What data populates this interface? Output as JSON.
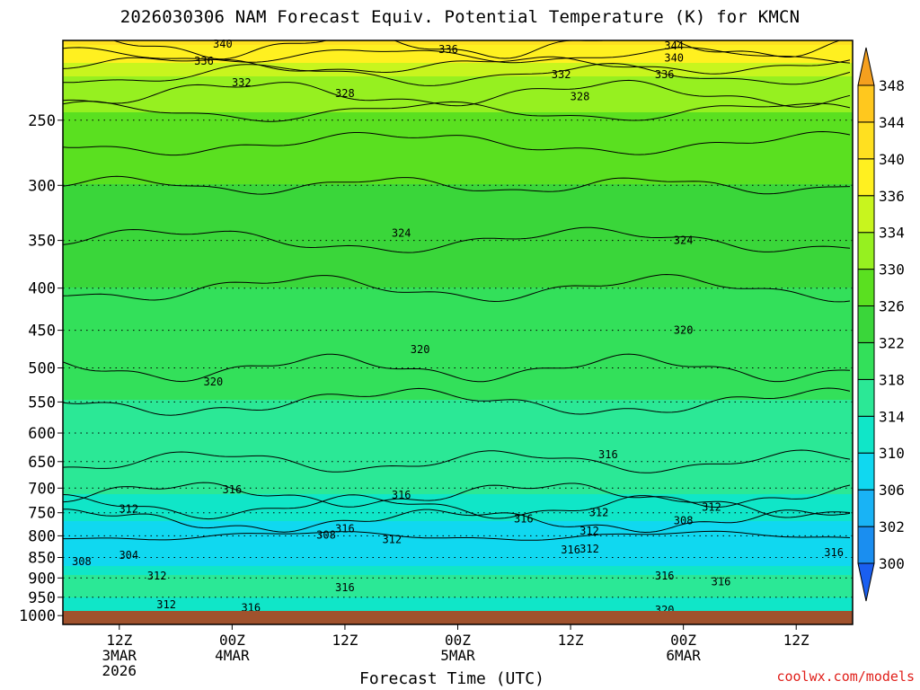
{
  "title": "2026030306 NAM Forecast Equiv. Potential Temperature (K) for KMCN",
  "credit": "coolwx.com/models",
  "chart_data": {
    "type": "heatmap",
    "title": "2026030306 NAM Forecast Equiv. Potential Temperature (K) for KMCN",
    "xlabel": "Forecast Time (UTC)",
    "ylabel": "",
    "y_scale": "log-pressure",
    "y_reversed": true,
    "ylim": [
      1000,
      200
    ],
    "y_ticks": [
      250,
      300,
      350,
      400,
      450,
      500,
      550,
      600,
      650,
      700,
      750,
      800,
      850,
      900,
      950,
      1000
    ],
    "xlim": [
      "2026-03-03T06Z",
      "2026-03-06T18Z"
    ],
    "x_ticks": [
      {
        "time": "2026-03-03T12Z",
        "lines": [
          "12Z",
          "3MAR",
          "2026"
        ]
      },
      {
        "time": "2026-03-04T00Z",
        "lines": [
          "00Z",
          "4MAR"
        ]
      },
      {
        "time": "2026-03-04T12Z",
        "lines": [
          "12Z"
        ]
      },
      {
        "time": "2026-03-05T00Z",
        "lines": [
          "00Z",
          "5MAR"
        ]
      },
      {
        "time": "2026-03-05T12Z",
        "lines": [
          "12Z"
        ]
      },
      {
        "time": "2026-03-06T00Z",
        "lines": [
          "00Z",
          "6MAR"
        ]
      },
      {
        "time": "2026-03-06T12Z",
        "lines": [
          "12Z"
        ]
      }
    ],
    "grid": true,
    "colorbar": {
      "levels": [
        300,
        302,
        306,
        310,
        314,
        318,
        322,
        326,
        330,
        334,
        336,
        340,
        344,
        348
      ],
      "colors": [
        "#1a5ff0",
        "#1a8ef0",
        "#19b3f5",
        "#10d8f0",
        "#10e6c8",
        "#2be896",
        "#33e05a",
        "#3ad63a",
        "#5ae020",
        "#96f020",
        "#c8f51e",
        "#fff020",
        "#ffe020",
        "#ffc81e",
        "#f5a01e"
      ],
      "tick_labels": [
        "300",
        "302",
        "306",
        "310",
        "314",
        "318",
        "322",
        "326",
        "330",
        "334",
        "336",
        "340",
        "344",
        "348"
      ]
    },
    "profile_by_pressure": [
      {
        "p": 1000,
        "thetae": 313
      },
      {
        "p": 950,
        "thetae": 314
      },
      {
        "p": 900,
        "thetae": 315
      },
      {
        "p": 850,
        "thetae": 307
      },
      {
        "p": 800,
        "thetae": 308
      },
      {
        "p": 750,
        "thetae": 311
      },
      {
        "p": 700,
        "thetae": 315
      },
      {
        "p": 650,
        "thetae": 316
      },
      {
        "p": 600,
        "thetae": 317
      },
      {
        "p": 550,
        "thetae": 318
      },
      {
        "p": 500,
        "thetae": 320
      },
      {
        "p": 450,
        "thetae": 321
      },
      {
        "p": 400,
        "thetae": 322
      },
      {
        "p": 350,
        "thetae": 324
      },
      {
        "p": 300,
        "thetae": 326
      },
      {
        "p": 250,
        "thetae": 329
      },
      {
        "p": 220,
        "thetae": 334
      },
      {
        "p": 200,
        "thetae": 341
      }
    ],
    "contour_labels": [
      {
        "text": "340",
        "time": "2026-03-03T23Z",
        "p": 202
      },
      {
        "text": "336",
        "time": "2026-03-03T21Z",
        "p": 212
      },
      {
        "text": "332",
        "time": "2026-03-04T01Z",
        "p": 225
      },
      {
        "text": "328",
        "time": "2026-03-04T12Z",
        "p": 232
      },
      {
        "text": "336",
        "time": "2026-03-04T23Z",
        "p": 205
      },
      {
        "text": "332",
        "time": "2026-03-05T11Z",
        "p": 220
      },
      {
        "text": "328",
        "time": "2026-03-05T13Z",
        "p": 234
      },
      {
        "text": "344",
        "time": "2026-03-05T23Z",
        "p": 203
      },
      {
        "text": "340",
        "time": "2026-03-05T23Z",
        "p": 210
      },
      {
        "text": "336",
        "time": "2026-03-05T22Z",
        "p": 220
      },
      {
        "text": "324",
        "time": "2026-03-04T18Z",
        "p": 343
      },
      {
        "text": "324",
        "time": "2026-03-06T00Z",
        "p": 350
      },
      {
        "text": "320",
        "time": "2026-03-04T20Z",
        "p": 475
      },
      {
        "text": "320",
        "time": "2026-03-03T22Z",
        "p": 520
      },
      {
        "text": "320",
        "time": "2026-03-06T00Z",
        "p": 450
      },
      {
        "text": "316",
        "time": "2026-03-05T16Z",
        "p": 637
      },
      {
        "text": "316",
        "time": "2026-03-04T00Z",
        "p": 703
      },
      {
        "text": "316",
        "time": "2026-03-04T18Z",
        "p": 714
      },
      {
        "text": "312",
        "time": "2026-03-03T13Z",
        "p": 742
      },
      {
        "text": "312",
        "time": "2026-03-05T15Z",
        "p": 750
      },
      {
        "text": "312",
        "time": "2026-03-06T03Z",
        "p": 738
      },
      {
        "text": "316",
        "time": "2026-03-05T07Z",
        "p": 763
      },
      {
        "text": "308",
        "time": "2026-03-06T00Z",
        "p": 767
      },
      {
        "text": "316",
        "time": "2026-03-04T12Z",
        "p": 784
      },
      {
        "text": "308",
        "time": "2026-03-04T10Z",
        "p": 798
      },
      {
        "text": "312",
        "time": "2026-03-04T17Z",
        "p": 808
      },
      {
        "text": "312",
        "time": "2026-03-05T14Z",
        "p": 789
      },
      {
        "text": "312",
        "time": "2026-03-05T14Z",
        "p": 830
      },
      {
        "text": "316",
        "time": "2026-03-05T12Z",
        "p": 832
      },
      {
        "text": "316",
        "time": "2026-03-06T16Z",
        "p": 838
      },
      {
        "text": "304",
        "time": "2026-03-03T13Z",
        "p": 845
      },
      {
        "text": "308",
        "time": "2026-03-03T08Z",
        "p": 860
      },
      {
        "text": "312",
        "time": "2026-03-03T16Z",
        "p": 895
      },
      {
        "text": "316",
        "time": "2026-03-05T22Z",
        "p": 895
      },
      {
        "text": "316",
        "time": "2026-03-06T04Z",
        "p": 910
      },
      {
        "text": "316",
        "time": "2026-03-04T12Z",
        "p": 925
      },
      {
        "text": "312",
        "time": "2026-03-03T17Z",
        "p": 970
      },
      {
        "text": "316",
        "time": "2026-03-04T02Z",
        "p": 978
      },
      {
        "text": "320",
        "time": "2026-03-05T22Z",
        "p": 985
      }
    ]
  }
}
